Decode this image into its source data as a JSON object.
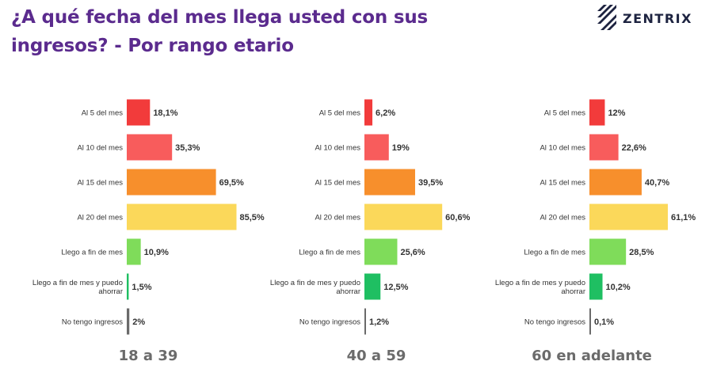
{
  "header": {
    "title": "¿A qué fecha del mes llega usted con sus ingresos? - Por rango etario",
    "logo_text": "ZENTRIX"
  },
  "colors": {
    "title": "#5b2b8e",
    "categories": [
      "#f23b3b",
      "#f85c5c",
      "#f78f2c",
      "#fbd85a",
      "#7fdc5a",
      "#1fbf62",
      "#6a6a6a"
    ],
    "label_text": "#333333",
    "group_label": "#6b6b6b"
  },
  "chart_data": [
    {
      "type": "bar",
      "orientation": "horizontal",
      "group_label": "18 a 39",
      "categories": [
        "Al 5 del mes",
        "Al 10 del mes",
        "Al 15 del mes",
        "Al 20 del mes",
        "Llego a fin de mes",
        "Llego a fin de mes y puedo ahorrar",
        "No tengo ingresos"
      ],
      "values": [
        18.1,
        35.3,
        69.5,
        85.5,
        10.9,
        1.5,
        2
      ],
      "value_labels": [
        "18,1%",
        "35,3%",
        "69,5%",
        "85,5%",
        "10,9%",
        "1,5%",
        "2%"
      ]
    },
    {
      "type": "bar",
      "orientation": "horizontal",
      "group_label": "40 a 59",
      "categories": [
        "Al 5 del mes",
        "Al 10 del mes",
        "Al 15 del mes",
        "Al 20 del mes",
        "Llego a fin de mes",
        "Llego a fin de mes y puedo ahorrar",
        "No tengo ingresos"
      ],
      "values": [
        6.2,
        19,
        39.5,
        60.6,
        25.6,
        12.5,
        1.2
      ],
      "value_labels": [
        "6,2%",
        "19%",
        "39,5%",
        "60,6%",
        "25,6%",
        "12,5%",
        "1,2%"
      ]
    },
    {
      "type": "bar",
      "orientation": "horizontal",
      "group_label": "60 en adelante",
      "categories": [
        "Al 5 del mes",
        "Al 10 del mes",
        "Al 15 del mes",
        "Al 20 del mes",
        "Llego a fin de mes",
        "Llego a fin de mes y puedo ahorrar",
        "No tengo ingresos"
      ],
      "values": [
        12,
        22.6,
        40.7,
        61.1,
        28.5,
        10.2,
        0.1
      ],
      "value_labels": [
        "12%",
        "22,6%",
        "40,7%",
        "61,1%",
        "28,5%",
        "10,2%",
        "0,1%"
      ]
    }
  ]
}
